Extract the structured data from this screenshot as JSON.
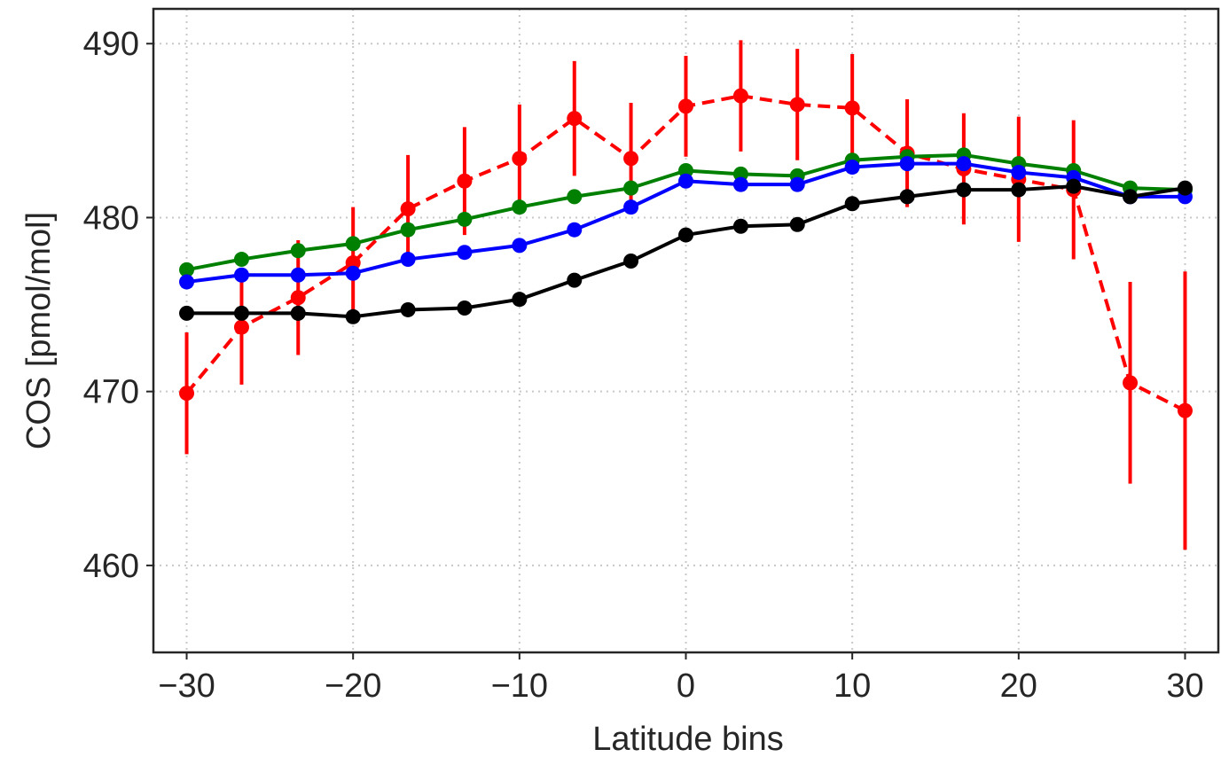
{
  "chart_data": {
    "type": "line",
    "xlabel": "Latitude bins",
    "ylabel": "COS [pmol/mol]",
    "xlim": [
      -32,
      32
    ],
    "ylim": [
      455,
      492
    ],
    "x_ticks": [
      -30,
      -20,
      -10,
      0,
      10,
      20,
      30
    ],
    "x_tick_labels": [
      "−30",
      "−20",
      "−10",
      "0",
      "10",
      "20",
      "30"
    ],
    "y_ticks": [
      460,
      470,
      480,
      490
    ],
    "y_tick_labels": [
      "460",
      "470",
      "480",
      "490"
    ],
    "grid": true,
    "legend": "none",
    "x": [
      -30,
      -26.7,
      -23.3,
      -20,
      -16.7,
      -13.3,
      -10,
      -6.7,
      -3.3,
      0,
      3.3,
      6.7,
      10,
      13.3,
      16.7,
      20,
      23.3,
      26.7,
      30
    ],
    "series": [
      {
        "color": "#ff0000",
        "style": "dashed",
        "values": [
          469.9,
          473.7,
          475.4,
          477.4,
          480.5,
          482.1,
          483.4,
          485.7,
          483.4,
          486.4,
          487.0,
          486.5,
          486.3,
          483.7,
          482.8,
          482.2,
          481.6,
          470.5,
          468.9
        ],
        "errors": [
          3.5,
          3.3,
          3.3,
          3.2,
          3.1,
          3.1,
          3.1,
          3.3,
          3.2,
          2.9,
          3.2,
          3.2,
          3.1,
          3.1,
          3.2,
          3.6,
          4.0,
          5.8,
          8.0
        ]
      },
      {
        "color": "#008000",
        "style": "solid",
        "values": [
          477.0,
          477.6,
          478.1,
          478.5,
          479.3,
          479.9,
          480.6,
          481.2,
          481.7,
          482.7,
          482.5,
          482.4,
          483.3,
          483.5,
          483.6,
          483.1,
          482.7,
          481.7,
          481.6
        ]
      },
      {
        "color": "#0000ff",
        "style": "solid",
        "values": [
          476.3,
          476.7,
          476.7,
          476.8,
          477.6,
          478.0,
          478.4,
          479.3,
          480.6,
          482.1,
          481.9,
          481.9,
          482.9,
          483.1,
          483.1,
          482.6,
          482.3,
          481.2,
          481.2
        ]
      },
      {
        "color": "#000000",
        "style": "solid",
        "values": [
          474.5,
          474.5,
          474.5,
          474.3,
          474.7,
          474.8,
          475.3,
          476.4,
          477.5,
          479.0,
          479.5,
          479.6,
          480.8,
          481.2,
          481.6,
          481.6,
          481.8,
          481.2,
          481.7
        ]
      }
    ]
  }
}
